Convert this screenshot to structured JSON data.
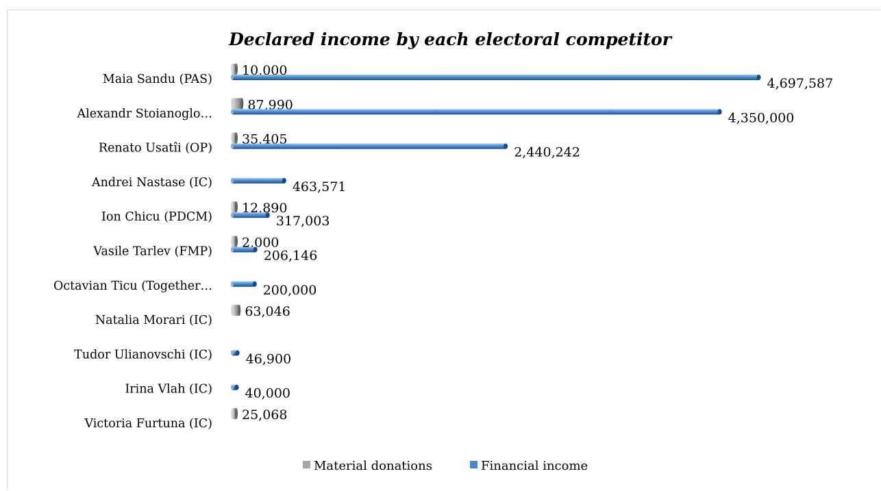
{
  "chart_data": {
    "type": "bar",
    "orientation": "horizontal",
    "title": "Declared income by each electoral competitor",
    "categories": [
      "Maia Sandu (PAS)",
      "Alexandr Stoianoglo…",
      "Renato Usatîi (OP)",
      "Andrei Nastase (IC)",
      "Ion Chicu (PDCM)",
      "Vasile Tarlev (FMP)",
      "Octavian Ticu (Together…",
      "Natalia Morari (IC)",
      "Tudor Ulianovschi (IC)",
      "Irina Vlah (IC)",
      "Victoria Furtuna (IC)"
    ],
    "series": [
      {
        "name": "Material donations",
        "color": "#a6a6a6",
        "values": [
          10000,
          87990,
          35405,
          null,
          12890,
          2000,
          null,
          63046,
          null,
          null,
          25068
        ],
        "labels": [
          "10,000",
          "87,990",
          "35,405",
          "",
          "12,890",
          "2,000",
          "",
          "63,046",
          "",
          "",
          "25,068"
        ]
      },
      {
        "name": "Financial income",
        "color": "#4a86c8",
        "values": [
          4697587,
          4350000,
          2440242,
          463571,
          317003,
          206146,
          200000,
          null,
          46900,
          40000,
          null
        ],
        "labels": [
          "4,697,587",
          "4,350,000",
          "2,440,242",
          "463,571",
          "317,003",
          "206,146",
          "200,000",
          "",
          "46,900",
          "40,000",
          ""
        ]
      }
    ],
    "xlim": [
      0,
      5000000
    ],
    "grid": false,
    "legend": "bottom"
  }
}
